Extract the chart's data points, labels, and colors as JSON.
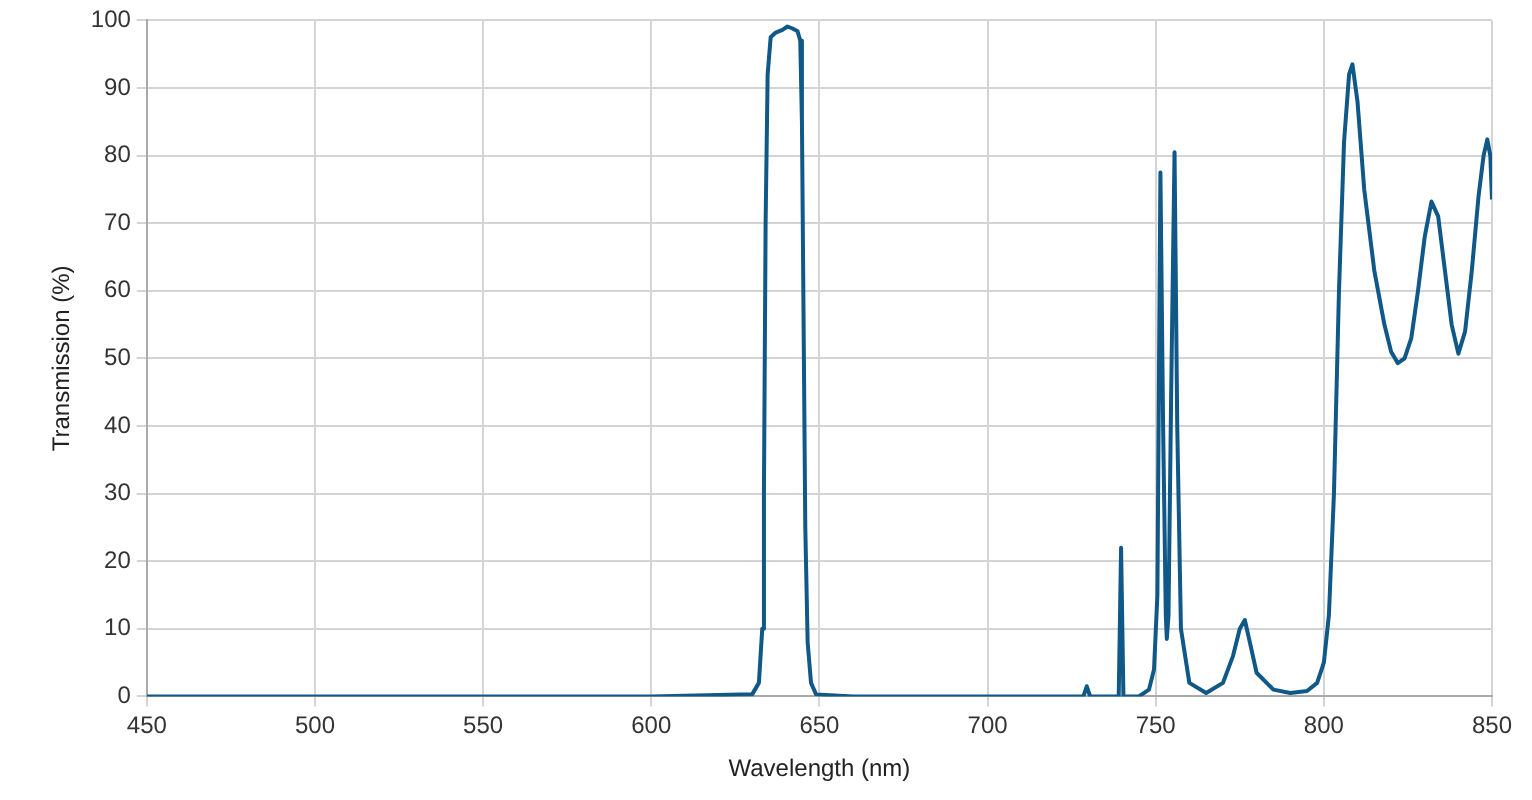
{
  "chart_data": {
    "type": "line",
    "xlabel": "Wavelength (nm)",
    "ylabel": "Transmission (%)",
    "xlim": [
      450,
      850
    ],
    "xticks": [
      450,
      500,
      550,
      600,
      650,
      700,
      750,
      800,
      850
    ],
    "ylim": [
      0,
      100
    ],
    "yticks": [
      0,
      10,
      20,
      30,
      40,
      50,
      60,
      70,
      80,
      90,
      100
    ],
    "grid": true,
    "legend": false,
    "marker": "none",
    "line_style": "solid",
    "series": [
      {
        "color": "#0f5887",
        "x": [
          450,
          600,
          630,
          632,
          633,
          633.5,
          634,
          634.6,
          635.5,
          637,
          639,
          640.5,
          642,
          643.5,
          644.3,
          644.8,
          645.3,
          645.8,
          646.5,
          647.5,
          649,
          660,
          700,
          728.5,
          729.5,
          730.5,
          739,
          739.7,
          740.4,
          745,
          748,
          749.5,
          750.5,
          751.4,
          752.2,
          753,
          753.3,
          753.8,
          754.6,
          755.6,
          756.4,
          757.5,
          760,
          765,
          770,
          773,
          775,
          776.5,
          778,
          780,
          785,
          790,
          795,
          798,
          800,
          801.5,
          803,
          804.5,
          806,
          807.5,
          808.5,
          810,
          812,
          815,
          818,
          820,
          822,
          824,
          826,
          828,
          830,
          832,
          834,
          836,
          838,
          840,
          842,
          844,
          846,
          847.5,
          848.6,
          849.5,
          850
        ],
        "values": [
          0,
          0,
          0.3,
          2,
          10,
          30,
          70,
          92,
          97.5,
          98.2,
          98.6,
          99.1,
          98.8,
          98.4,
          97,
          85,
          55,
          25,
          8,
          2,
          0.3,
          0,
          0,
          0,
          1.5,
          0,
          0,
          22,
          0,
          0,
          1,
          4,
          15,
          77.5,
          40,
          12,
          8.5,
          12,
          45,
          80.5,
          40,
          10,
          2,
          0.5,
          2,
          6,
          10,
          11.3,
          8,
          3.5,
          1,
          0.5,
          0.8,
          2,
          5,
          12,
          30,
          60,
          82,
          92,
          93.5,
          88,
          75,
          63,
          55,
          51,
          49.3,
          50,
          53,
          60,
          68,
          73.2,
          71,
          63,
          55,
          50.7,
          54,
          63,
          74,
          80,
          82.4,
          80,
          73.5
        ]
      }
    ]
  }
}
